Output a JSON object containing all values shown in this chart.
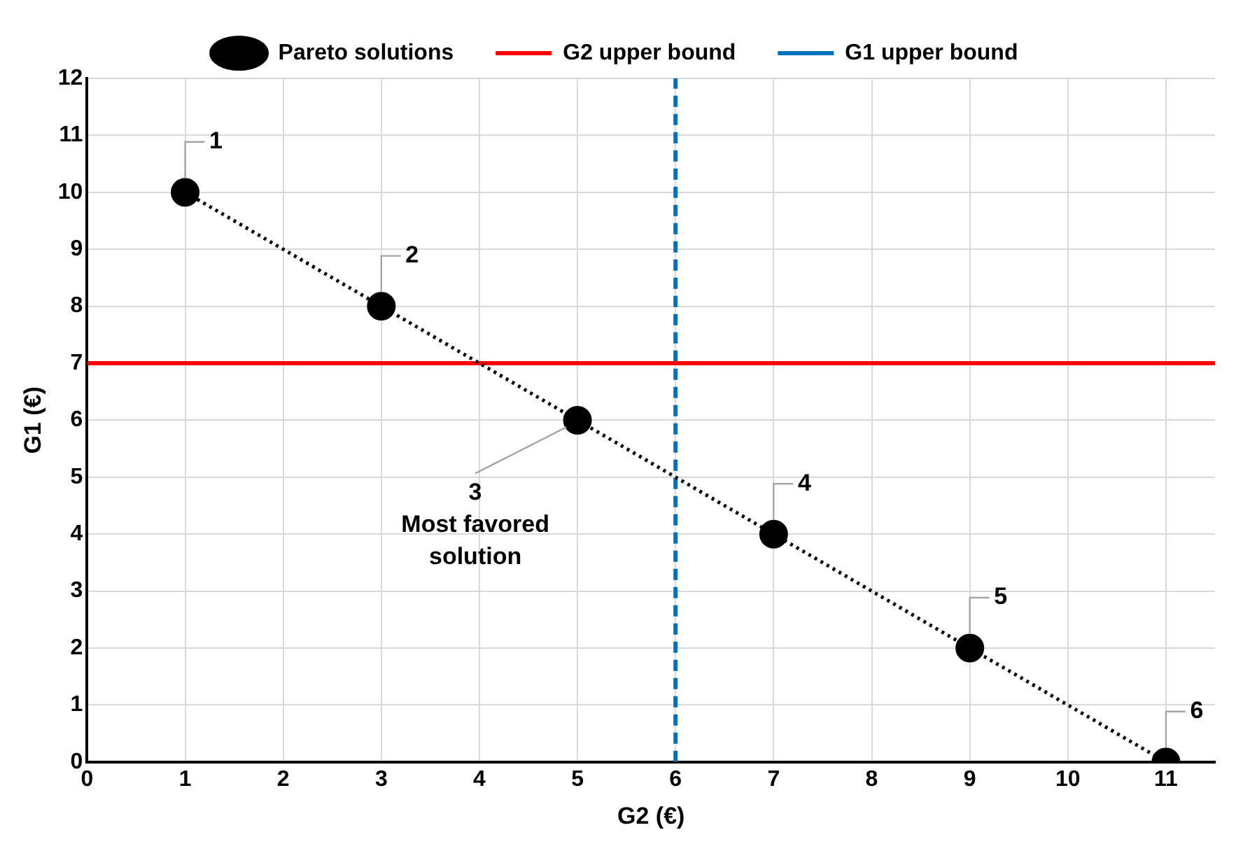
{
  "chart_data": {
    "type": "line",
    "xlabel": "G2 (€)",
    "ylabel": "G1 (€)",
    "x": [
      1,
      3,
      5,
      7,
      9,
      11
    ],
    "series": [
      {
        "name": "Pareto solutions",
        "color": "#000000",
        "values": [
          10,
          8,
          6,
          4,
          2,
          0
        ]
      }
    ],
    "xlim": [
      0,
      11.5
    ],
    "xticks": [
      0,
      1,
      2,
      3,
      4,
      5,
      6,
      7,
      8,
      9,
      10,
      11
    ],
    "ylim": [
      0,
      12
    ],
    "yticks": [
      0,
      1,
      2,
      3,
      4,
      5,
      6,
      7,
      8,
      9,
      10,
      11,
      12
    ],
    "ref_lines": [
      {
        "axis": "y",
        "value": 7,
        "label": "G2 upper bound",
        "color": "#ff0000",
        "line_style": "solid"
      },
      {
        "axis": "x",
        "value": 6,
        "label": "G1 upper bound",
        "color": "#0070c0",
        "line_style": "dashed"
      }
    ],
    "annotations": [
      {
        "text": "1",
        "x": 1,
        "y": 10
      },
      {
        "text": "2",
        "x": 3,
        "y": 8
      },
      {
        "text": "3\nMost favored solution",
        "x": 5,
        "y": 6
      },
      {
        "text": "4",
        "x": 7,
        "y": 4
      },
      {
        "text": "5",
        "x": 9,
        "y": 2
      },
      {
        "text": "6",
        "x": 11,
        "y": 0
      }
    ],
    "grid": true,
    "legend": "top",
    "marker": "circle",
    "line_style": "dotted"
  }
}
